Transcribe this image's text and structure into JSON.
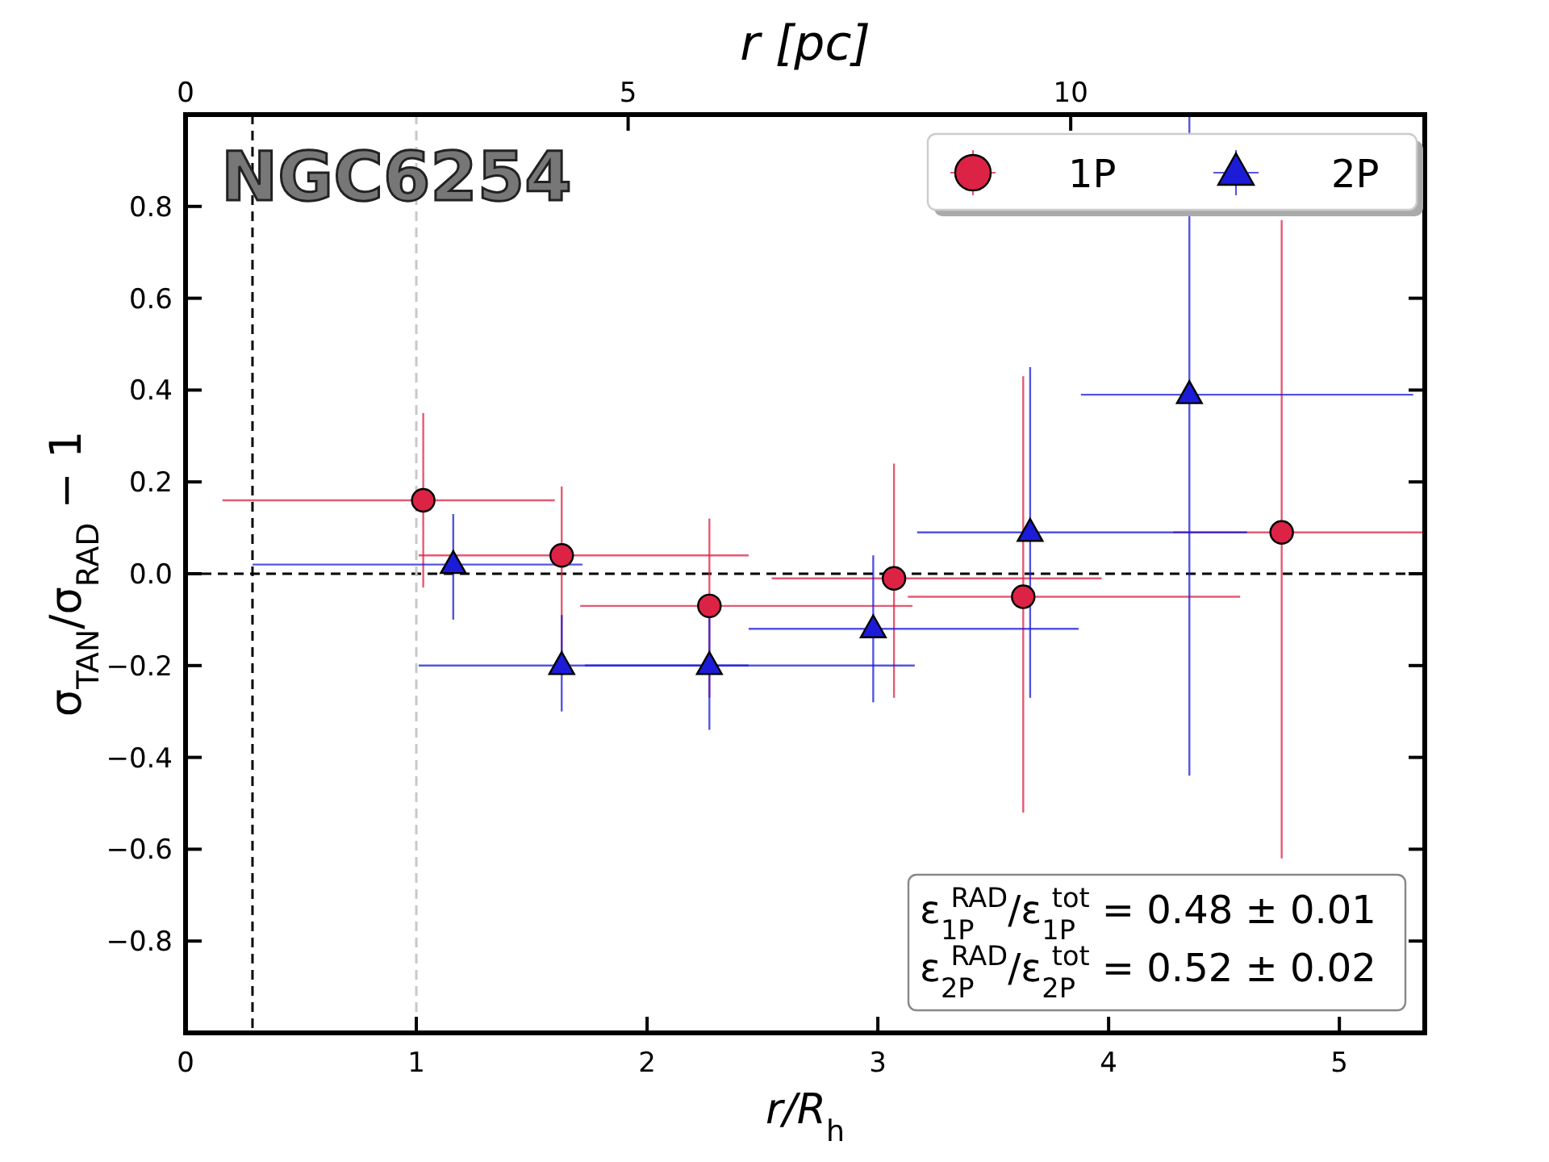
{
  "chart_data": {
    "type": "scatter",
    "xlabel": "r/R$_{h}$",
    "ylabel": "σ$_{TAN}$/σ$_{RAD}$ − 1",
    "x2label": "r [pc]",
    "xlim": [
      0,
      5.37
    ],
    "xticks": [
      0,
      1,
      2,
      3,
      4,
      5
    ],
    "x2lim": [
      0,
      14.0
    ],
    "x2ticks": [
      0,
      5,
      10
    ],
    "ylim": [
      -1.0,
      1.0
    ],
    "yticks": [
      {
        "value": -0.8,
        "label": "−0.8"
      },
      {
        "value": -0.6,
        "label": "−0.6"
      },
      {
        "value": -0.4,
        "label": "−0.4"
      },
      {
        "value": -0.2,
        "label": "−0.2"
      },
      {
        "value": 0,
        "label": "0.0"
      },
      {
        "value": 0.2,
        "label": "0.2"
      },
      {
        "value": 0.4,
        "label": "0.4"
      },
      {
        "value": 0.6,
        "label": "0.6"
      },
      {
        "value": 0.8,
        "label": "0.8"
      }
    ],
    "grid": false,
    "legend": "top right",
    "series": [
      {
        "name": "1P",
        "color": "#dc2346",
        "marker": "circle",
        "x": [
          1.03,
          1.63,
          2.27,
          3.07,
          3.63,
          4.75
        ],
        "values": [
          0.16,
          0.04,
          -0.07,
          -0.01,
          -0.05,
          0.09
        ],
        "xerrors": [
          [
            0.16,
            1.6
          ],
          [
            1.01,
            2.44
          ],
          [
            1.71,
            3.15
          ],
          [
            2.54,
            3.97
          ],
          [
            3.13,
            4.57
          ],
          [
            4.28,
            5.37
          ]
        ],
        "errors": [
          [
            -0.03,
            0.35
          ],
          [
            -0.19,
            0.19
          ],
          [
            -0.27,
            0.12
          ],
          [
            -0.27,
            0.24
          ],
          [
            -0.52,
            0.43
          ],
          [
            -0.62,
            0.77
          ]
        ]
      },
      {
        "name": "2P",
        "color": "#1c1cd8",
        "marker": "triangle",
        "x": [
          1.16,
          1.63,
          2.27,
          2.98,
          3.66,
          4.35
        ],
        "values": [
          0.02,
          -0.2,
          -0.2,
          -0.12,
          0.09,
          0.39
        ],
        "xerrors": [
          [
            0.29,
            1.72
          ],
          [
            1.01,
            2.44
          ],
          [
            1.73,
            3.16
          ],
          [
            2.44,
            3.87
          ],
          [
            3.17,
            4.6
          ],
          [
            3.88,
            5.32
          ]
        ],
        "errors": [
          [
            -0.1,
            0.13
          ],
          [
            -0.3,
            -0.09
          ],
          [
            -0.34,
            -0.09
          ],
          [
            -0.28,
            0.04
          ],
          [
            -0.27,
            0.45
          ],
          [
            -0.44,
            1.0
          ]
        ]
      }
    ],
    "ref_lines": [
      {
        "axis": "y",
        "value": 0,
        "color": "#000000",
        "line_style": "dashed"
      },
      {
        "axis": "x",
        "value": 0.29,
        "color": "#000000",
        "line_style": "dashed"
      },
      {
        "axis": "x",
        "value": 1.0,
        "color": "#c8c8c8",
        "line_style": "dashed"
      }
    ],
    "annotations": [
      "NGC6254",
      "ε$_{1P}$$^{RAD}$/ε$_{1P}$$^{tot}$ = 0.48 ± 0.01",
      "ε$_{2P}$$^{RAD}$/ε$_{2P}$$^{tot}$ = 0.52 ± 0.02"
    ]
  }
}
